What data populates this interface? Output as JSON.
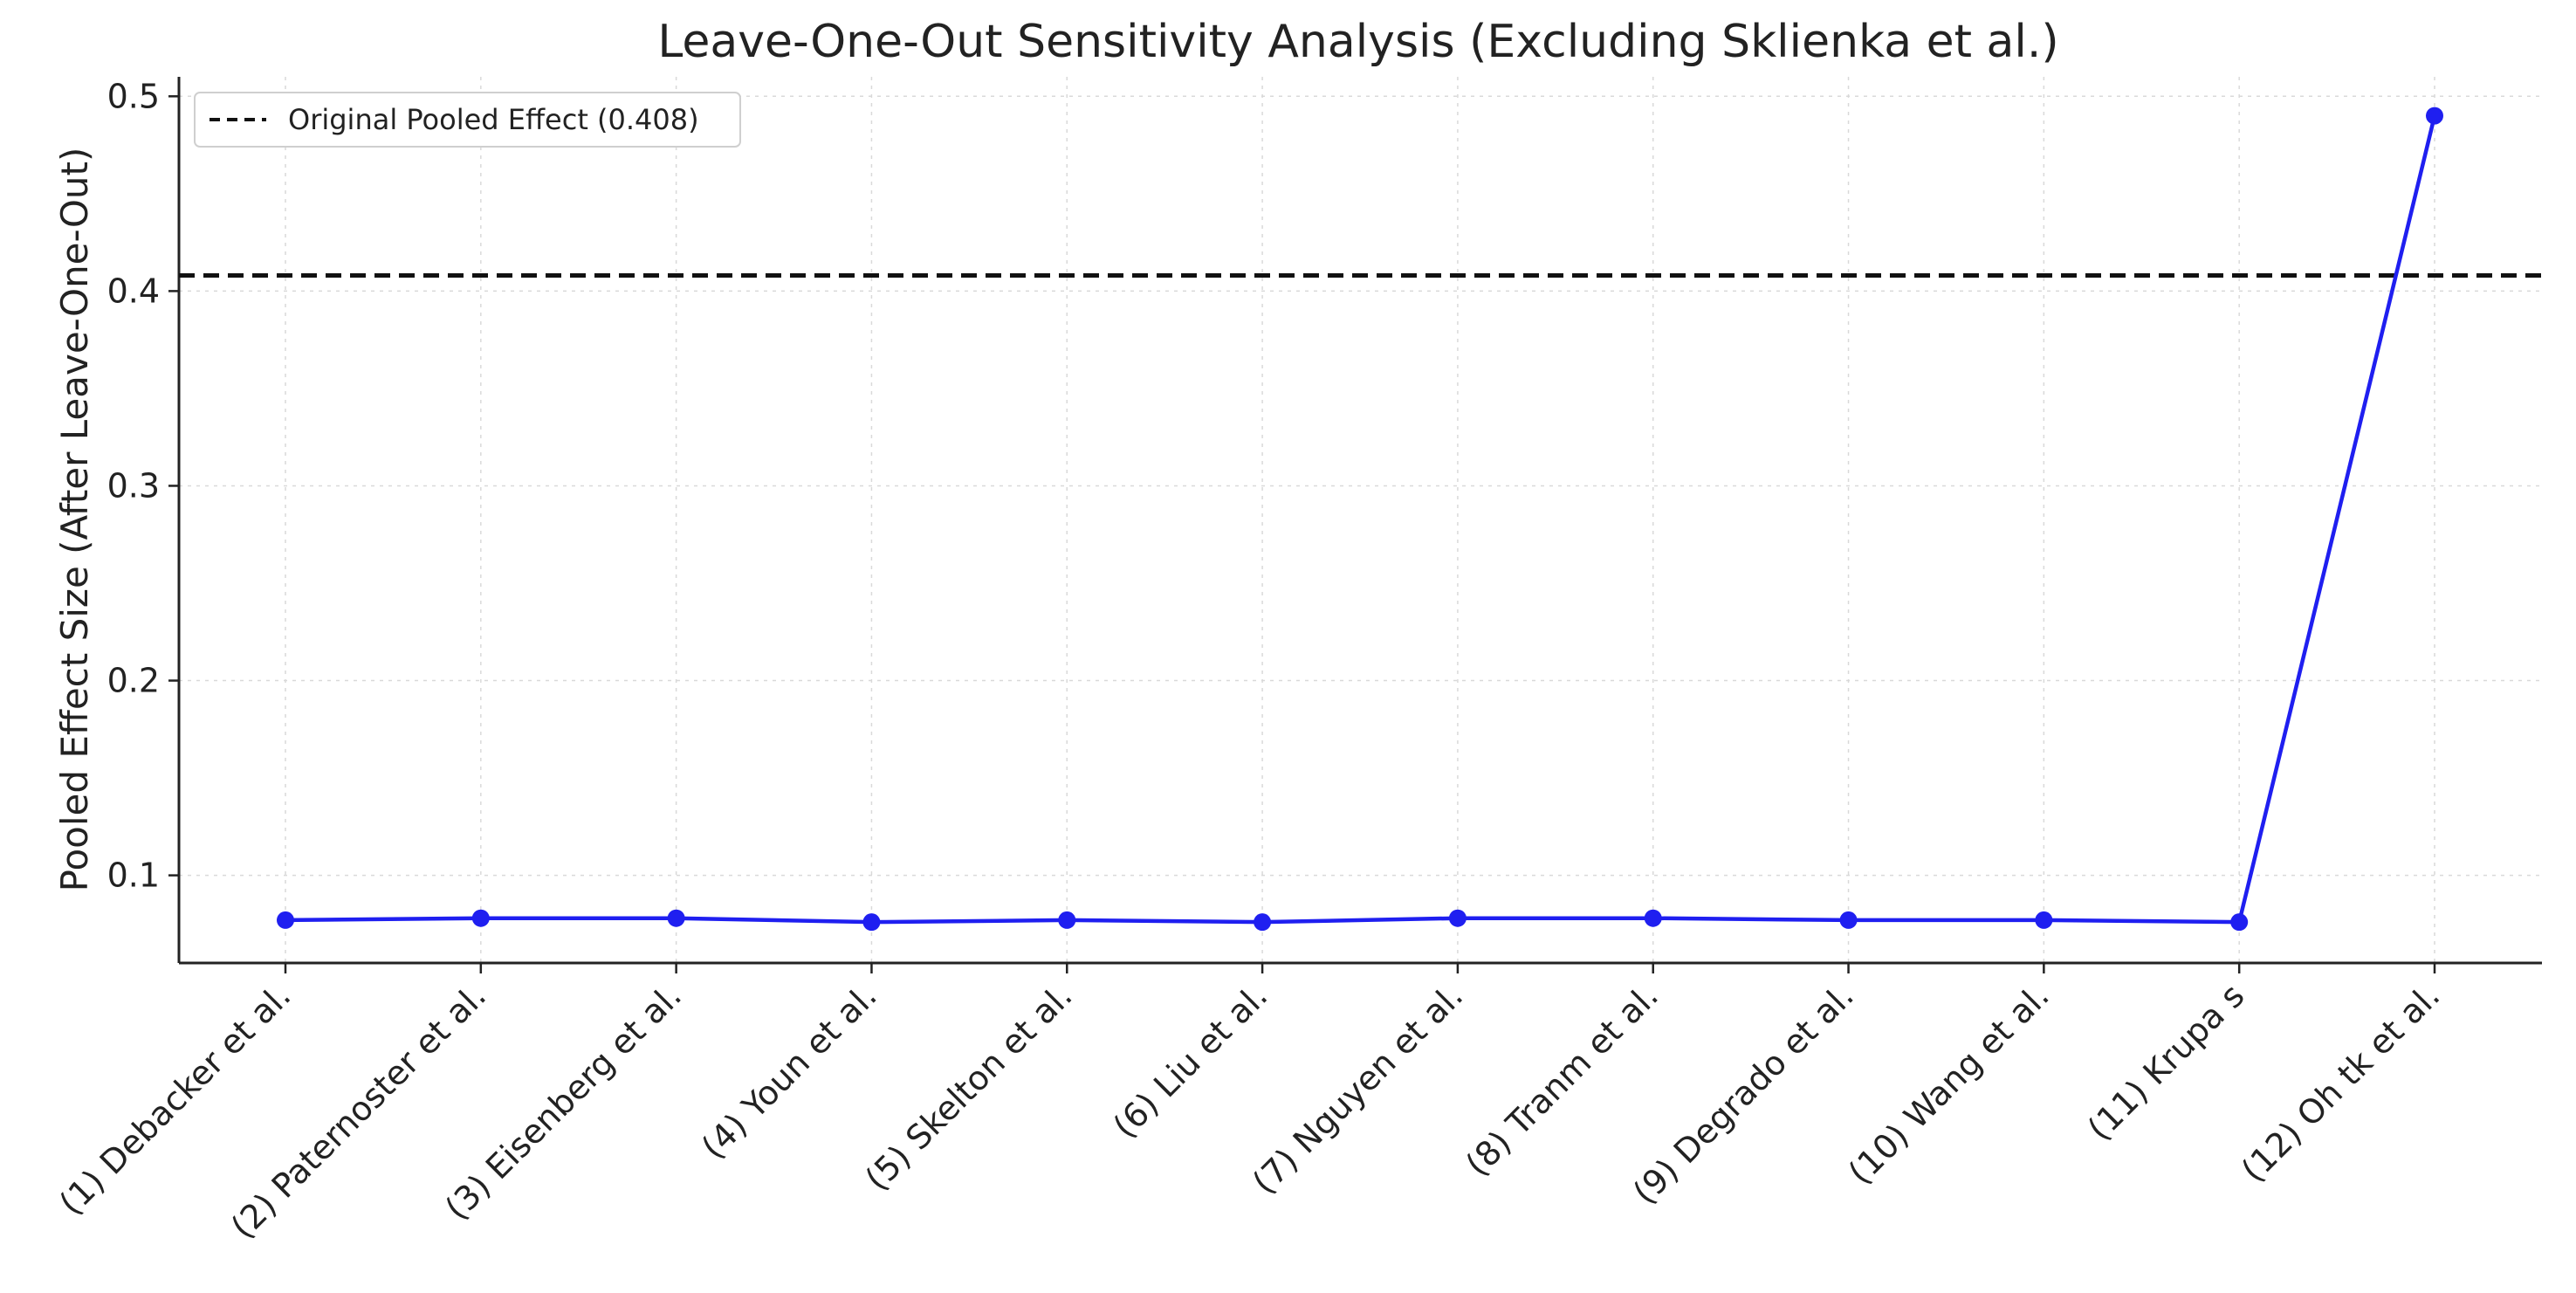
{
  "chart_data": {
    "type": "line",
    "title": "Leave-One-Out Sensitivity Analysis (Excluding Sklienka et al.)",
    "xlabel": "",
    "ylabel": "Pooled Effect Size (After Leave-One-Out)",
    "categories": [
      "(1) Debacker et al.",
      "(2)  Paternoster et al.",
      "(3)  Eisenberg et al.",
      "(4) Youn et al.",
      "(5) Skelton et al.",
      "(6) Liu et al.",
      "(7) Nguyen et al.",
      "(8) Tranm et al.",
      "(9) Degrado et al.",
      "(10) Wang et al.",
      "(11) Krupa s",
      "(12) Oh tk et al."
    ],
    "series": [
      {
        "values": [
          0.077,
          0.078,
          0.078,
          0.076,
          0.077,
          0.076,
          0.078,
          0.078,
          0.077,
          0.077,
          0.076,
          0.49
        ],
        "color": "#1f1ff0"
      }
    ],
    "reference_line": {
      "label": "Original Pooled Effect (0.408)",
      "value": 0.408,
      "color": "#111111",
      "style": "dashed"
    },
    "ylim": [
      0.055,
      0.51
    ],
    "yticks": [
      0.1,
      0.2,
      0.3,
      0.4,
      0.5
    ],
    "ytick_labels": [
      "0.1",
      "0.2",
      "0.3",
      "0.4",
      "0.5"
    ],
    "grid": true,
    "legend_position": "top-left"
  }
}
